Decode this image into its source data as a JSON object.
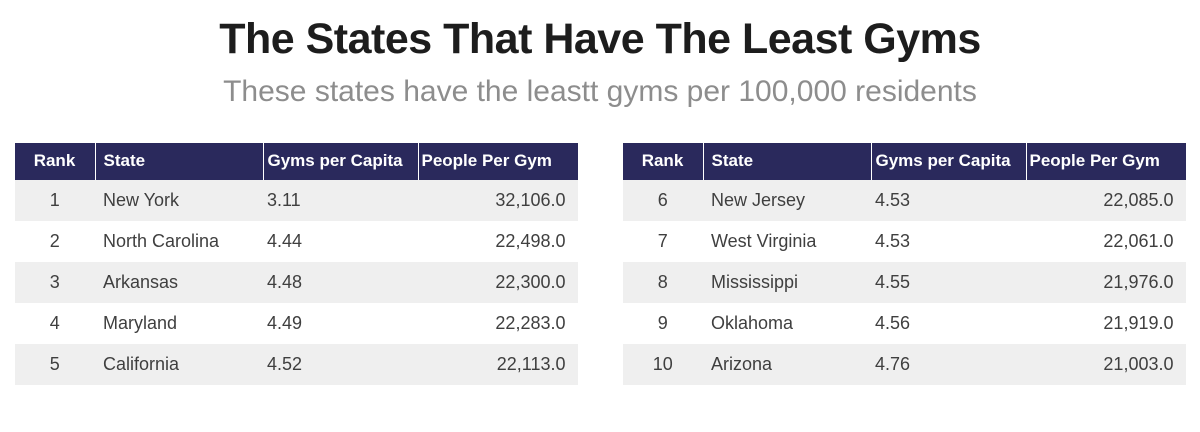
{
  "page": {
    "title": "The States That Have The Least Gyms",
    "subtitle": "These states have the leastt gyms per 100,000 residents"
  },
  "colors": {
    "header_bg": "#2a295c",
    "header_text": "#ffffff",
    "row_alt_bg": "#efefef",
    "row_bg": "#ffffff",
    "body_text": "#3f3f3f",
    "title_text": "#1d1d1d",
    "subtitle_text": "#8d8d8d"
  },
  "chart_data": {
    "type": "table",
    "title": "The States That Have The Least Gyms",
    "subtitle": "These states have the leastt gyms per 100,000 residents",
    "columns": [
      "Rank",
      "State",
      "Gyms per Capita",
      "People Per Gym"
    ],
    "tables": [
      {
        "rows": [
          [
            "1",
            "New York",
            "3.11",
            "32,106.0"
          ],
          [
            "2",
            "North Carolina",
            "4.44",
            "22,498.0"
          ],
          [
            "3",
            "Arkansas",
            "4.48",
            "22,300.0"
          ],
          [
            "4",
            "Maryland",
            "4.49",
            "22,283.0"
          ],
          [
            "5",
            "California",
            "4.52",
            "22,113.0"
          ]
        ]
      },
      {
        "rows": [
          [
            "6",
            "New Jersey",
            "4.53",
            "22,085.0"
          ],
          [
            "7",
            "West Virginia",
            "4.53",
            "22,061.0"
          ],
          [
            "8",
            "Mississippi",
            "4.55",
            "21,976.0"
          ],
          [
            "9",
            "Oklahoma",
            "4.56",
            "21,919.0"
          ],
          [
            "10",
            "Arizona",
            "4.76",
            "21,003.0"
          ]
        ]
      }
    ]
  }
}
